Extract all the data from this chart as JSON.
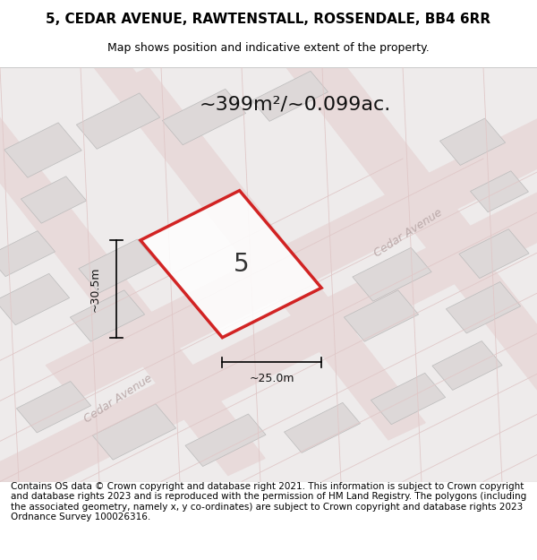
{
  "title_line1": "5, CEDAR AVENUE, RAWTENSTALL, ROSSENDALE, BB4 6RR",
  "title_line2": "Map shows position and indicative extent of the property.",
  "area_text": "~399m²/~0.099ac.",
  "label_number": "5",
  "dim_width": "~25.0m",
  "dim_height": "~30.5m",
  "footer_text": "Contains OS data © Crown copyright and database right 2021. This information is subject to Crown copyright and database rights 2023 and is reproduced with the permission of HM Land Registry. The polygons (including the associated geometry, namely x, y co-ordinates) are subject to Crown copyright and database rights 2023 Ordnance Survey 100026316.",
  "bg_color": "#f0eded",
  "map_bg": "#f5f3f3",
  "road_color": "#e8d8d8",
  "plot_outline_color": "#cc0000",
  "plot_fill_color": "#ffffff",
  "plot_alpha": 0.85,
  "building_color": "#ddd8d8",
  "street_name1": "Cedar Avenue",
  "street_name2": "Cedar Avenue",
  "title_fontsize": 11,
  "subtitle_fontsize": 9,
  "footer_fontsize": 7.5
}
